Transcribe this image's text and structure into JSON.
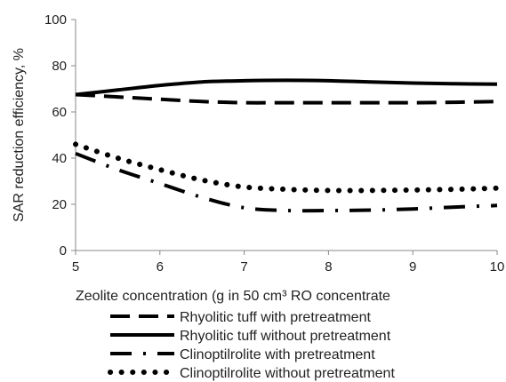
{
  "chart_data": {
    "type": "line",
    "title": "",
    "xlabel": "Zeolite concentration (g in 50 cm³ RO concentrate",
    "ylabel": "SAR reduction efficiency, %",
    "xlim": [
      5,
      10
    ],
    "ylim": [
      0,
      100
    ],
    "x_ticks": [
      "5",
      "6",
      "7",
      "8",
      "9",
      "10"
    ],
    "y_ticks": [
      "0",
      "20",
      "40",
      "60",
      "80",
      "100"
    ],
    "grid": false,
    "legend_position": "bottom",
    "series": [
      {
        "name": "Rhyolitic tuff with pretreatment",
        "style": "long-dash",
        "points": [
          [
            5,
            67.5
          ],
          [
            5.5,
            66.5
          ],
          [
            6,
            65.5
          ],
          [
            6.5,
            64.5
          ],
          [
            7,
            64
          ],
          [
            7.5,
            64
          ],
          [
            8,
            64
          ],
          [
            8.5,
            64
          ],
          [
            9,
            64
          ],
          [
            9.5,
            64.2
          ],
          [
            10,
            64.5
          ]
        ]
      },
      {
        "name": "Rhyolitic tuff without pretreatment",
        "style": "solid",
        "points": [
          [
            5,
            67.5
          ],
          [
            5.5,
            69.5
          ],
          [
            6,
            71.5
          ],
          [
            6.5,
            73
          ],
          [
            7,
            73.5
          ],
          [
            7.5,
            73.7
          ],
          [
            8,
            73.5
          ],
          [
            8.5,
            73
          ],
          [
            9,
            72.5
          ],
          [
            9.5,
            72.2
          ],
          [
            10,
            72
          ]
        ]
      },
      {
        "name": "Clinoptilrolite with pretreatment",
        "style": "dash-dot",
        "points": [
          [
            5,
            42
          ],
          [
            5.5,
            35
          ],
          [
            6,
            29
          ],
          [
            6.5,
            23
          ],
          [
            7,
            18.5
          ],
          [
            7.5,
            17.3
          ],
          [
            8,
            17.3
          ],
          [
            8.5,
            17.5
          ],
          [
            9,
            18
          ],
          [
            9.5,
            18.8
          ],
          [
            10,
            19.5
          ]
        ]
      },
      {
        "name": "Clinoptilrolite without pretreatment",
        "style": "dotted",
        "points": [
          [
            5,
            46
          ],
          [
            5.5,
            40
          ],
          [
            6,
            35
          ],
          [
            6.5,
            30.5
          ],
          [
            7,
            27.5
          ],
          [
            7.5,
            26.5
          ],
          [
            8,
            26
          ],
          [
            8.5,
            26
          ],
          [
            9,
            26.2
          ],
          [
            9.5,
            26.5
          ],
          [
            10,
            27
          ]
        ]
      }
    ]
  }
}
